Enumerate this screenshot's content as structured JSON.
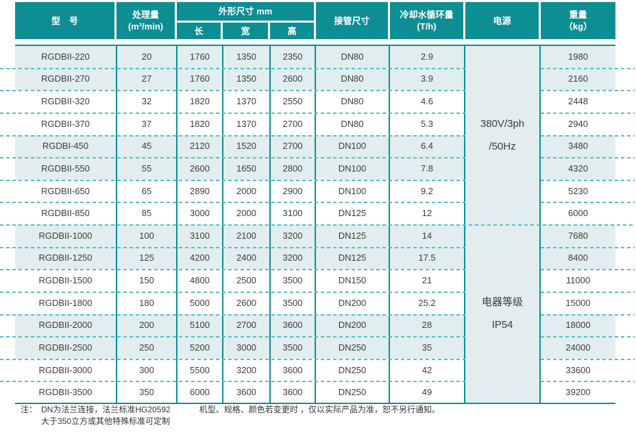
{
  "colors": {
    "accent_teal": "#0d8e93",
    "row_shade": "#e1edee",
    "dashed_line": "#58bcc6",
    "header_text": "#ffffff",
    "body_text": "#3c3c3c"
  },
  "table": {
    "header": {
      "model": "型　号",
      "capacity_line1": "处理量",
      "capacity_line2": "(m³/min)",
      "dimensions": "外形尺寸 mm",
      "length": "长",
      "width": "宽",
      "height": "高",
      "pipe": "接管尺寸",
      "cooling_line1": "冷却水循环量",
      "cooling_line2": "(T/h)",
      "power": "电源",
      "weight_line1": "重量",
      "weight_line2": "（kg）"
    },
    "power_groups": [
      {
        "line1": "380V/3ph",
        "line2": "/50Hz"
      },
      {
        "line1": "电器等级",
        "line2": "IP54"
      }
    ],
    "rows": [
      {
        "model": "RGDBII-220",
        "capacity": "20",
        "length": "1760",
        "width": "1350",
        "height": "2350",
        "pipe": "DN80",
        "cooling": "2.9",
        "weight": "1980"
      },
      {
        "model": "RGDBII-270",
        "capacity": "27",
        "length": "1760",
        "width": "1350",
        "height": "2600",
        "pipe": "DN80",
        "cooling": "3.9",
        "weight": "2160"
      },
      {
        "model": "RGDBII-320",
        "capacity": "32",
        "length": "1820",
        "width": "1370",
        "height": "2550",
        "pipe": "DN80",
        "cooling": "4.6",
        "weight": "2448"
      },
      {
        "model": "RGDBII-370",
        "capacity": "37",
        "length": "1820",
        "width": "1370",
        "height": "2700",
        "pipe": "DN80",
        "cooling": "5.3",
        "weight": "2940"
      },
      {
        "model": "RGDBI-450",
        "capacity": "45",
        "length": "2120",
        "width": "1520",
        "height": "2700",
        "pipe": "DN100",
        "cooling": "6.4",
        "weight": "3480"
      },
      {
        "model": "RGDBII-550",
        "capacity": "55",
        "length": "2600",
        "width": "1650",
        "height": "2800",
        "pipe": "DN100",
        "cooling": "7.8",
        "weight": "4320"
      },
      {
        "model": "RGDBII-650",
        "capacity": "65",
        "length": "2890",
        "width": "2000",
        "height": "2900",
        "pipe": "DN100",
        "cooling": "9.2",
        "weight": "5230"
      },
      {
        "model": "RGDBII-850",
        "capacity": "85",
        "length": "3000",
        "width": "2000",
        "height": "3100",
        "pipe": "DN125",
        "cooling": "12",
        "weight": "6000"
      },
      {
        "model": "RGDBII-1000",
        "capacity": "100",
        "length": "3100",
        "width": "2100",
        "height": "3200",
        "pipe": "DN125",
        "cooling": "14",
        "weight": "7680"
      },
      {
        "model": "RGDBII-1250",
        "capacity": "125",
        "length": "4200",
        "width": "2400",
        "height": "3200",
        "pipe": "DN125",
        "cooling": "17.5",
        "weight": "8400"
      },
      {
        "model": "RGDBII-1500",
        "capacity": "150",
        "length": "4800",
        "width": "2500",
        "height": "3500",
        "pipe": "DN150",
        "cooling": "21",
        "weight": "11000"
      },
      {
        "model": "RGDBII-1800",
        "capacity": "180",
        "length": "5000",
        "width": "2600",
        "height": "3500",
        "pipe": "DN200",
        "cooling": "25.2",
        "weight": "15000"
      },
      {
        "model": "RGDBII-2000",
        "capacity": "200",
        "length": "5100",
        "width": "2700",
        "height": "3600",
        "pipe": "DN200",
        "cooling": "28",
        "weight": "18000"
      },
      {
        "model": "RGDBII-2500",
        "capacity": "250",
        "length": "5200",
        "width": "3000",
        "height": "3500",
        "pipe": "DN250",
        "cooling": "35",
        "weight": "24000"
      },
      {
        "model": "RGDBII-3000",
        "capacity": "300",
        "length": "5500",
        "width": "3200",
        "height": "3600",
        "pipe": "DN250",
        "cooling": "42",
        "weight": "33600"
      },
      {
        "model": "RGDBII-3500",
        "capacity": "350",
        "length": "6000",
        "width": "3600",
        "height": "3600",
        "pipe": "DN250",
        "cooling": "49",
        "weight": "39200"
      }
    ]
  },
  "notes": {
    "label": "注：",
    "line1": "DN为法兰连接，法兰标准HG20592",
    "line2": "大于350立方或其他特殊标准可定制",
    "right": "机型、规格、颜色若变更时 ，仅以实际产品为准，恕不另行通知。"
  }
}
